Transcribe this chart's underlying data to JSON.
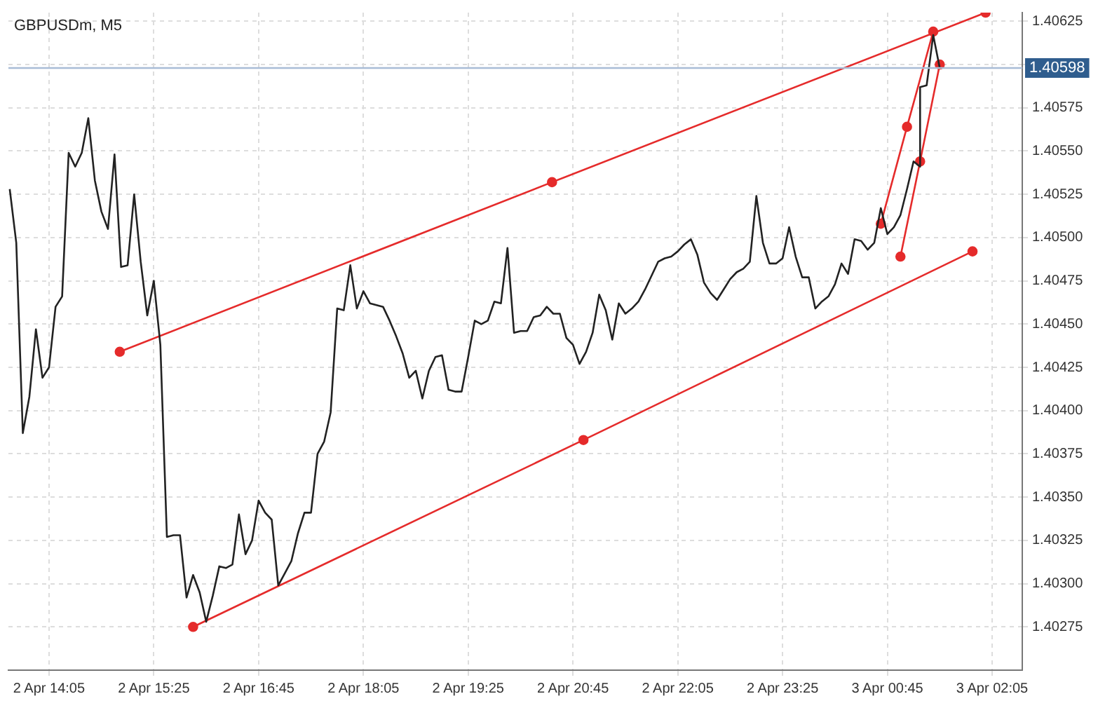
{
  "chart_data": {
    "type": "line",
    "title": "GBPUSDm, M5",
    "xlim": [
      "--04-02T13:34",
      "--04-03T02:28"
    ],
    "ylim": [
      1.4025,
      1.4063
    ],
    "xticks": [
      {
        "value": "--04-02T14:05",
        "label": "2 Apr 14:05"
      },
      {
        "value": "--04-02T15:25",
        "label": "2 Apr 15:25"
      },
      {
        "value": "--04-02T16:45",
        "label": "2 Apr 16:45"
      },
      {
        "value": "--04-02T18:05",
        "label": "2 Apr 18:05"
      },
      {
        "value": "--04-02T19:25",
        "label": "2 Apr 19:25"
      },
      {
        "value": "--04-02T20:45",
        "label": "2 Apr 20:45"
      },
      {
        "value": "--04-02T22:05",
        "label": "2 Apr 22:05"
      },
      {
        "value": "--04-02T23:25",
        "label": "2 Apr 23:25"
      },
      {
        "value": "--04-03T00:45",
        "label": "3 Apr 00:45"
      },
      {
        "value": "--04-03T02:05",
        "label": "3 Apr 02:05"
      }
    ],
    "yticks": [
      1.40275,
      {
        "value": 1.403,
        "label": "1.40300"
      },
      1.40325,
      {
        "value": 1.4035,
        "label": "1.40350"
      },
      1.40375,
      {
        "value": 1.404,
        "label": "1.40400"
      },
      1.40425,
      {
        "value": 1.4045,
        "label": "1.40450"
      },
      1.40475,
      {
        "value": 1.405,
        "label": "1.40500"
      },
      1.40525,
      {
        "value": 1.4055,
        "label": "1.40550"
      },
      1.40575,
      {
        "value": 1.406,
        "label": null
      },
      1.40625
    ],
    "grid": true,
    "ref_lines": [
      {
        "axis": "y",
        "value": 1.40598,
        "label": "1.40598",
        "color": "#a9bcd6"
      }
    ],
    "series": [
      {
        "color": "#222222",
        "marker": "none",
        "x": [
          "--04-02T13:35",
          "--04-02T13:40",
          "--04-02T13:45",
          "--04-02T13:50",
          "--04-02T13:55",
          "--04-02T14:00",
          "--04-02T14:05",
          "--04-02T14:10",
          "--04-02T14:15",
          "--04-02T14:20",
          "--04-02T14:25",
          "--04-02T14:30",
          "--04-02T14:35",
          "--04-02T14:40",
          "--04-02T14:45",
          "--04-02T14:50",
          "--04-02T14:55",
          "--04-02T15:00",
          "--04-02T15:05",
          "--04-02T15:10",
          "--04-02T15:15",
          "--04-02T15:20",
          "--04-02T15:25",
          "--04-02T15:30",
          "--04-02T15:35",
          "--04-02T15:40",
          "--04-02T15:45",
          "--04-02T15:50",
          "--04-02T15:55",
          "--04-02T16:00",
          "--04-02T16:05",
          "--04-02T16:10",
          "--04-02T16:15",
          "--04-02T16:20",
          "--04-02T16:25",
          "--04-02T16:30",
          "--04-02T16:35",
          "--04-02T16:40",
          "--04-02T16:45",
          "--04-02T16:50",
          "--04-02T16:55",
          "--04-02T17:00",
          "--04-02T17:05",
          "--04-02T17:10",
          "--04-02T17:15",
          "--04-02T17:20",
          "--04-02T17:25",
          "--04-02T17:30",
          "--04-02T17:35",
          "--04-02T17:40",
          "--04-02T17:45",
          "--04-02T17:50",
          "--04-02T17:55",
          "--04-02T18:00",
          "--04-02T18:05",
          "--04-02T18:10",
          "--04-02T18:15",
          "--04-02T18:20",
          "--04-02T18:25",
          "--04-02T18:30",
          "--04-02T18:35",
          "--04-02T18:40",
          "--04-02T18:45",
          "--04-02T18:50",
          "--04-02T18:55",
          "--04-02T19:00",
          "--04-02T19:05",
          "--04-02T19:10",
          "--04-02T19:15",
          "--04-02T19:20",
          "--04-02T19:25",
          "--04-02T19:30",
          "--04-02T19:35",
          "--04-02T19:40",
          "--04-02T19:45",
          "--04-02T19:50",
          "--04-02T19:55",
          "--04-02T20:00",
          "--04-02T20:05",
          "--04-02T20:10",
          "--04-02T20:15",
          "--04-02T20:20",
          "--04-02T20:25",
          "--04-02T20:30",
          "--04-02T20:35",
          "--04-02T20:40",
          "--04-02T20:45",
          "--04-02T20:50",
          "--04-02T20:55",
          "--04-02T21:00",
          "--04-02T21:05",
          "--04-02T21:10",
          "--04-02T21:15",
          "--04-02T21:20",
          "--04-02T21:25",
          "--04-02T21:30",
          "--04-02T21:35",
          "--04-02T21:40",
          "--04-02T21:45",
          "--04-02T21:50",
          "--04-02T21:55",
          "--04-02T22:00",
          "--04-02T22:05",
          "--04-02T22:10",
          "--04-02T22:15",
          "--04-02T22:20",
          "--04-02T22:25",
          "--04-02T22:30",
          "--04-02T22:35",
          "--04-02T22:40",
          "--04-02T22:45",
          "--04-02T22:50",
          "--04-02T22:55",
          "--04-02T23:00",
          "--04-02T23:05",
          "--04-02T23:10",
          "--04-02T23:15",
          "--04-02T23:20",
          "--04-02T23:25",
          "--04-02T23:30",
          "--04-02T23:35",
          "--04-02T23:40",
          "--04-02T23:45",
          "--04-02T23:50",
          "--04-02T23:55",
          "--04-03T00:00",
          "--04-03T00:05",
          "--04-03T00:10",
          "--04-03T00:15",
          "--04-03T00:20",
          "--04-03T00:25",
          "--04-03T00:30",
          "--04-03T00:35",
          "--04-03T00:40",
          "--04-03T00:45",
          "--04-03T00:50",
          "--04-03T00:55",
          "--04-03T01:00",
          "--04-03T01:05",
          "--04-03T01:10",
          "--04-03T01:10",
          "--04-03T01:15",
          "--04-03T01:20",
          "--04-03T01:25"
        ],
        "values": [
          1.40528,
          1.40497,
          1.40387,
          1.40408,
          1.40447,
          1.40419,
          1.40425,
          1.4046,
          1.40466,
          1.40549,
          1.40541,
          1.40549,
          1.40569,
          1.40533,
          1.40515,
          1.40505,
          1.40548,
          1.40483,
          1.40484,
          1.40525,
          1.40486,
          1.40455,
          1.40475,
          1.40438,
          1.40327,
          1.40328,
          1.40328,
          1.40292,
          1.40305,
          1.40295,
          1.40278,
          1.40293,
          1.4031,
          1.40309,
          1.40311,
          1.4034,
          1.40317,
          1.40325,
          1.40348,
          1.40341,
          1.40337,
          1.40299,
          1.40306,
          1.40313,
          1.40329,
          1.40341,
          1.40341,
          1.40375,
          1.40382,
          1.40399,
          1.40459,
          1.40458,
          1.40484,
          1.40459,
          1.40469,
          1.40462,
          1.40461,
          1.4046,
          1.40452,
          1.40443,
          1.40433,
          1.40419,
          1.40423,
          1.40407,
          1.40423,
          1.40431,
          1.40432,
          1.40412,
          1.40411,
          1.40411,
          1.40431,
          1.40452,
          1.4045,
          1.40452,
          1.40463,
          1.40462,
          1.40494,
          1.40445,
          1.40446,
          1.40446,
          1.40454,
          1.40455,
          1.4046,
          1.40456,
          1.40456,
          1.40442,
          1.40438,
          1.40427,
          1.40434,
          1.40445,
          1.40467,
          1.40458,
          1.40441,
          1.40462,
          1.40456,
          1.40459,
          1.40463,
          1.4047,
          1.40478,
          1.40486,
          1.40488,
          1.40489,
          1.40492,
          1.40496,
          1.40499,
          1.4049,
          1.40474,
          1.40468,
          1.40464,
          1.4047,
          1.40476,
          1.4048,
          1.40482,
          1.40486,
          1.40524,
          1.40497,
          1.40485,
          1.40485,
          1.40488,
          1.40506,
          1.40489,
          1.40477,
          1.40477,
          1.40459,
          1.40463,
          1.40466,
          1.40473,
          1.40485,
          1.40479,
          1.40499,
          1.40498,
          1.40493,
          1.40497,
          1.40517,
          1.40502,
          1.40506,
          1.40513,
          1.40528,
          1.40544,
          1.40541,
          1.40587,
          1.40588,
          1.40617,
          1.40598
        ]
      },
      {
        "color": "#e52b2b",
        "marker": "circle",
        "x": [
          "--04-02T14:59",
          "--04-02T20:29",
          "--04-03T02:00"
        ],
        "values": [
          1.40434,
          1.40532,
          1.4063
        ]
      },
      {
        "color": "#e52b2b",
        "marker": "circle",
        "x": [
          "--04-02T15:55",
          "--04-02T20:53",
          "--04-03T01:50"
        ],
        "values": [
          1.40275,
          1.40383,
          1.40492
        ]
      },
      {
        "color": "#e52b2b",
        "marker": "circle",
        "x": [
          "--04-03T00:40",
          "--04-03T01:00",
          "--04-03T01:20"
        ],
        "values": [
          1.40508,
          1.40564,
          1.40619
        ]
      },
      {
        "color": "#e52b2b",
        "marker": "circle",
        "x": [
          "--04-03T00:55",
          "--04-03T01:10",
          "--04-03T01:25"
        ],
        "values": [
          1.40489,
          1.40544,
          1.406
        ]
      }
    ]
  }
}
